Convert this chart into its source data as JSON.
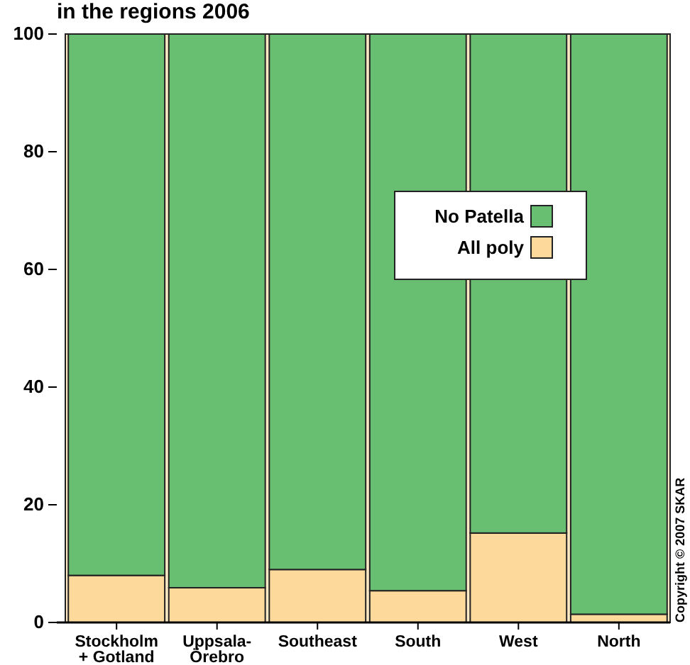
{
  "chart_data": {
    "type": "bar",
    "title": "in the regions 2006",
    "categories": [
      "Stockholm\n+ Gotland",
      "Uppsala-\nÖrebro",
      "Southeast",
      "South",
      "West",
      "North"
    ],
    "stacked": true,
    "series": [
      {
        "name": "All poly",
        "color": "#fdd99c",
        "values": [
          8.0,
          5.9,
          9.0,
          5.4,
          15.2,
          1.4
        ]
      },
      {
        "name": "No Patella",
        "color": "#68bf72",
        "values": [
          92.0,
          94.1,
          91.0,
          94.6,
          84.8,
          98.6
        ]
      }
    ],
    "ylim": [
      0,
      100
    ],
    "yticks": [
      0,
      20,
      40,
      60,
      80,
      100
    ],
    "legend": "right",
    "annotations": [
      "Copyright © 2007 SKAR"
    ]
  }
}
